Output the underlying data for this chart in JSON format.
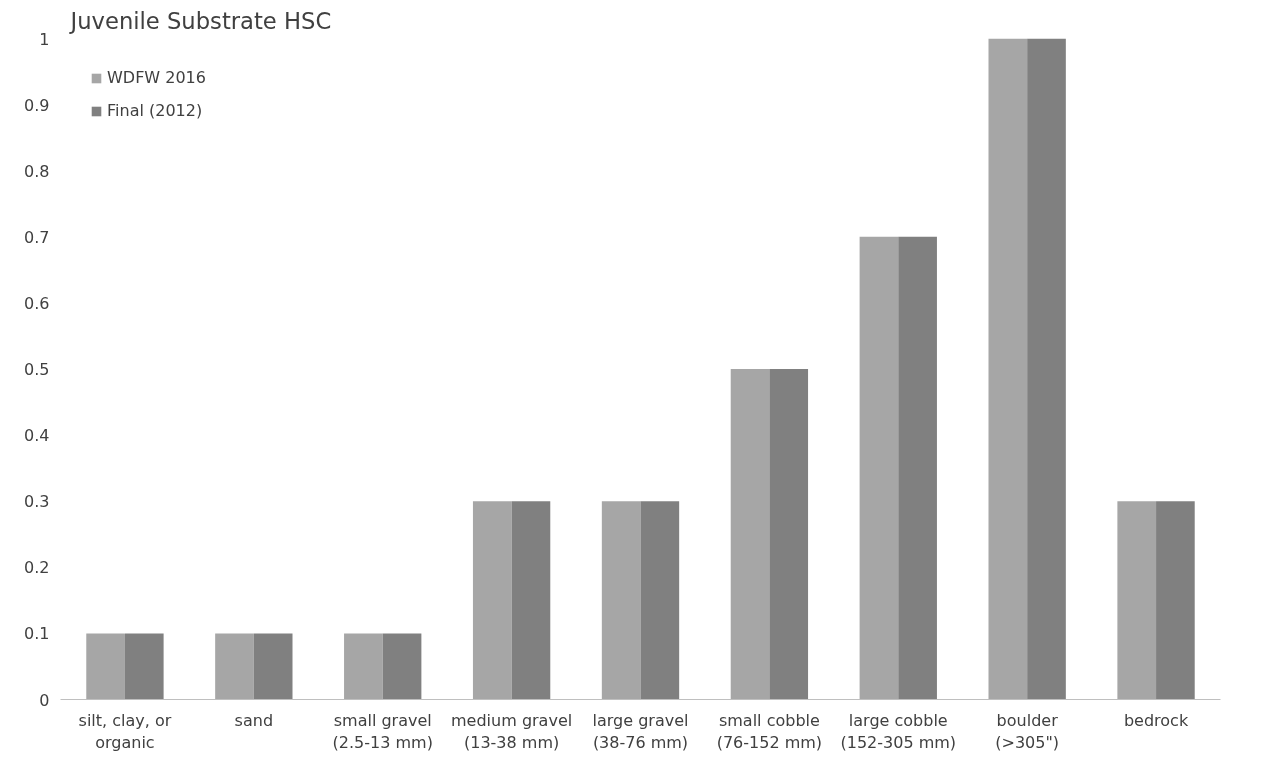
{
  "chart_data": {
    "type": "bar",
    "title": "Juvenile Substrate HSC",
    "categories": [
      "silt, clay, or organic",
      "sand",
      "small gravel (2.5-13 mm)",
      "medium gravel (13-38 mm)",
      "large gravel (38-76 mm)",
      "small cobble (76-152 mm)",
      "large cobble (152-305 mm)",
      "boulder (>305\")",
      "bedrock"
    ],
    "series": [
      {
        "name": "WDFW 2016",
        "color": "#a6a6a6",
        "values": [
          0.1,
          0.1,
          0.1,
          0.3,
          0.3,
          0.5,
          0.7,
          1,
          0.3
        ]
      },
      {
        "name": "Final (2012)",
        "color": "#808080",
        "values": [
          0.1,
          0.1,
          0.1,
          0.3,
          0.3,
          0.5,
          0.7,
          1,
          0.3
        ]
      }
    ],
    "ylim": [
      0,
      1
    ],
    "yticks": [
      0,
      0.1,
      0.2,
      0.3,
      0.4,
      0.5,
      0.6,
      0.7,
      0.8,
      0.9,
      1
    ],
    "grid": false,
    "legend": "top left"
  }
}
